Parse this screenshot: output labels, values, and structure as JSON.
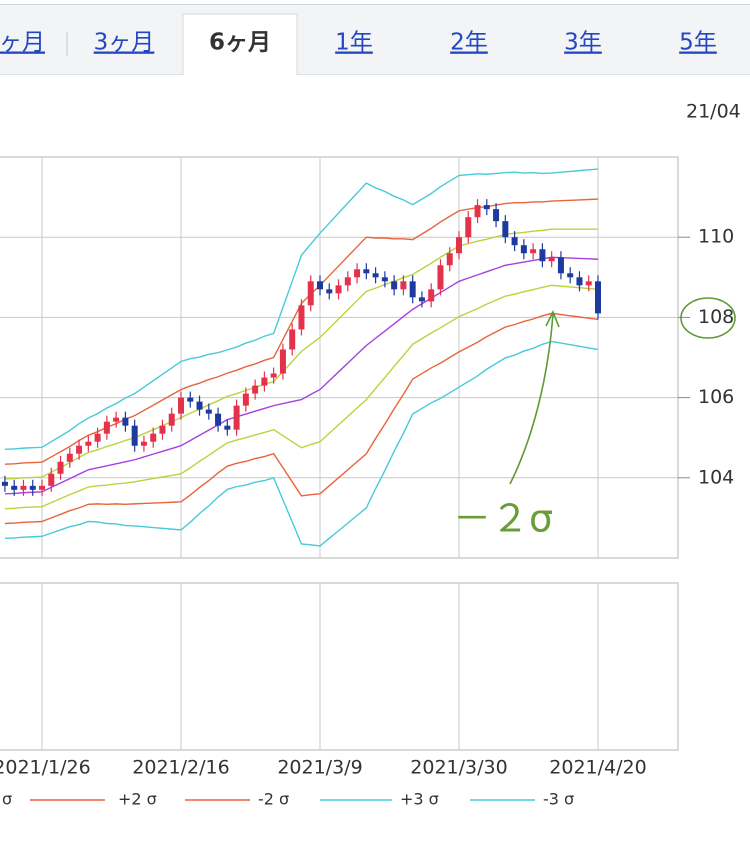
{
  "tabs": [
    "ヶ月",
    "3ヶ月",
    "6ヶ月",
    "1年",
    "2年",
    "3年",
    "5年"
  ],
  "active_tab": 2,
  "date_label": "21/04",
  "chart_data": {
    "type": "candlestick",
    "annotation": "－２σ",
    "categories": [
      null,
      null,
      null,
      null,
      "2021/1/26",
      null,
      null,
      null,
      null,
      null,
      null,
      null,
      null,
      null,
      null,
      null,
      null,
      null,
      null,
      "2021/2/16",
      null,
      null,
      null,
      null,
      null,
      null,
      null,
      null,
      null,
      null,
      null,
      null,
      null,
      null,
      "2021/3/9",
      null,
      null,
      null,
      null,
      null,
      null,
      null,
      null,
      null,
      null,
      null,
      null,
      null,
      null,
      "2021/3/30",
      null,
      null,
      null,
      null,
      null,
      null,
      null,
      null,
      null,
      null,
      null,
      null,
      null,
      null,
      "2021/4/20"
    ],
    "open": [
      103.9,
      103.8,
      103.7,
      103.8,
      103.7,
      103.8,
      104.1,
      104.4,
      104.6,
      104.8,
      104.9,
      105.1,
      105.4,
      105.5,
      105.3,
      104.8,
      104.9,
      105.1,
      105.3,
      105.6,
      106.0,
      105.9,
      105.7,
      105.6,
      105.3,
      105.2,
      105.8,
      106.1,
      106.3,
      106.5,
      106.6,
      107.2,
      107.7,
      108.3,
      108.9,
      108.7,
      108.6,
      108.8,
      109.0,
      109.2,
      109.1,
      109.0,
      108.9,
      108.7,
      108.9,
      108.5,
      108.4,
      108.7,
      109.3,
      109.6,
      110.0,
      110.5,
      110.8,
      110.7,
      110.4,
      110.0,
      109.8,
      109.6,
      109.7,
      109.4,
      109.5,
      109.1,
      109.0,
      108.8,
      108.9
    ],
    "high": [
      104.05,
      103.95,
      103.95,
      103.95,
      103.95,
      104.25,
      104.55,
      104.75,
      104.95,
      105.05,
      105.25,
      105.55,
      105.65,
      105.65,
      105.45,
      105.05,
      105.25,
      105.45,
      105.75,
      106.15,
      106.15,
      106.05,
      105.85,
      105.75,
      105.45,
      105.95,
      106.25,
      106.45,
      106.65,
      106.75,
      107.35,
      107.85,
      108.45,
      109.05,
      109.05,
      108.85,
      108.95,
      109.15,
      109.35,
      109.35,
      109.25,
      109.15,
      109.05,
      109.05,
      109.05,
      108.65,
      108.85,
      109.45,
      109.75,
      110.15,
      110.65,
      110.95,
      110.95,
      110.85,
      110.55,
      110.15,
      109.95,
      109.85,
      109.85,
      109.65,
      109.65,
      109.25,
      109.15,
      109.05,
      109.05
    ],
    "low": [
      103.65,
      103.55,
      103.55,
      103.55,
      103.55,
      103.65,
      103.95,
      104.25,
      104.45,
      104.65,
      104.75,
      104.95,
      105.25,
      105.15,
      104.65,
      104.65,
      104.75,
      104.95,
      105.15,
      105.45,
      105.75,
      105.55,
      105.45,
      105.15,
      105.05,
      105.05,
      105.65,
      105.95,
      106.15,
      106.35,
      106.45,
      107.05,
      107.55,
      108.15,
      108.55,
      108.45,
      108.45,
      108.65,
      108.85,
      108.95,
      108.85,
      108.75,
      108.55,
      108.55,
      108.35,
      108.25,
      108.25,
      108.55,
      109.15,
      109.45,
      109.85,
      110.35,
      110.55,
      110.25,
      109.85,
      109.65,
      109.45,
      109.45,
      109.25,
      109.25,
      108.95,
      108.85,
      108.65,
      108.65,
      107.95
    ],
    "close": [
      103.8,
      103.7,
      103.8,
      103.7,
      103.8,
      104.1,
      104.4,
      104.6,
      104.8,
      104.9,
      105.1,
      105.4,
      105.5,
      105.3,
      104.8,
      104.9,
      105.1,
      105.3,
      105.6,
      106.0,
      105.9,
      105.7,
      105.6,
      105.3,
      105.2,
      105.8,
      106.1,
      106.3,
      106.5,
      106.6,
      107.2,
      107.7,
      108.3,
      108.9,
      108.7,
      108.6,
      108.8,
      109.0,
      109.2,
      109.1,
      109.0,
      108.9,
      108.7,
      108.9,
      108.5,
      108.4,
      108.7,
      109.3,
      109.6,
      110.0,
      110.5,
      110.8,
      110.7,
      110.4,
      110.0,
      109.8,
      109.6,
      109.7,
      109.4,
      109.5,
      109.1,
      109.0,
      108.8,
      108.9,
      108.1
    ],
    "up_color": "#e4324c",
    "down_color": "#1d3a9e",
    "series": [
      {
        "color": "#a640e0",
        "values": [
          103.6,
          103.61,
          103.63,
          103.64,
          103.65,
          103.76,
          103.87,
          103.98,
          104.09,
          104.2,
          104.25,
          104.3,
          104.35,
          104.4,
          104.45,
          104.52,
          104.59,
          104.66,
          104.73,
          104.8,
          104.93,
          105.06,
          105.19,
          105.32,
          105.45,
          105.52,
          105.59,
          105.66,
          105.73,
          105.8,
          105.85,
          105.9,
          105.95,
          106.08,
          106.2,
          106.42,
          106.64,
          106.86,
          107.08,
          107.3,
          107.48,
          107.66,
          107.84,
          108.02,
          108.2,
          108.34,
          108.48,
          108.62,
          108.76,
          108.9,
          108.98,
          109.06,
          109.14,
          109.22,
          109.3,
          109.34,
          109.38,
          109.42,
          109.46,
          109.5,
          109.49,
          109.48,
          109.47,
          109.46,
          109.45
        ]
      },
      {
        "color": "#bcd33c",
        "values": [
          103.97,
          103.98,
          104.0,
          104.01,
          104.02,
          104.14,
          104.26,
          104.38,
          104.51,
          104.63,
          104.7,
          104.78,
          104.85,
          104.93,
          105.0,
          105.1,
          105.2,
          105.3,
          105.4,
          105.5,
          105.61,
          105.71,
          105.82,
          105.92,
          106.03,
          106.1,
          106.18,
          106.25,
          106.33,
          106.4,
          106.65,
          106.9,
          107.15,
          107.33,
          107.5,
          107.73,
          107.96,
          108.19,
          108.42,
          108.65,
          108.73,
          108.82,
          108.9,
          108.99,
          109.07,
          109.21,
          109.35,
          109.5,
          109.64,
          109.78,
          109.84,
          109.9,
          109.95,
          110.01,
          110.07,
          110.1,
          110.12,
          110.15,
          110.17,
          110.2,
          110.2,
          110.2,
          110.2,
          110.2,
          110.2
        ]
      },
      {
        "name": "σ",
        "color": "#bcd33c",
        "values": [
          103.23,
          103.24,
          103.26,
          103.27,
          103.28,
          103.38,
          103.48,
          103.58,
          103.67,
          103.77,
          103.8,
          103.82,
          103.85,
          103.87,
          103.9,
          103.94,
          103.98,
          104.02,
          104.06,
          104.1,
          104.25,
          104.41,
          104.56,
          104.72,
          104.87,
          104.94,
          105.0,
          105.07,
          105.13,
          105.2,
          105.05,
          104.9,
          104.75,
          104.83,
          104.9,
          105.11,
          105.32,
          105.53,
          105.74,
          105.95,
          106.23,
          106.5,
          106.78,
          107.05,
          107.33,
          107.47,
          107.61,
          107.74,
          107.88,
          108.02,
          108.12,
          108.22,
          108.33,
          108.43,
          108.53,
          108.58,
          108.64,
          108.69,
          108.75,
          108.8,
          108.78,
          108.76,
          108.74,
          108.72,
          108.7
        ]
      },
      {
        "name": "+2 σ",
        "color": "#e8643c",
        "values": [
          104.34,
          104.35,
          104.37,
          104.38,
          104.39,
          104.52,
          104.65,
          104.78,
          104.93,
          105.06,
          105.15,
          105.26,
          105.35,
          105.46,
          105.55,
          105.68,
          105.81,
          105.94,
          106.07,
          106.2,
          106.29,
          106.36,
          106.45,
          106.52,
          106.61,
          106.68,
          106.77,
          106.84,
          106.93,
          107.0,
          107.45,
          107.9,
          108.35,
          108.58,
          108.8,
          109.04,
          109.28,
          109.52,
          109.76,
          110.0,
          109.98,
          109.98,
          109.96,
          109.96,
          109.94,
          110.08,
          110.22,
          110.38,
          110.52,
          110.66,
          110.7,
          110.74,
          110.76,
          110.8,
          110.84,
          110.86,
          110.86,
          110.88,
          110.88,
          110.9,
          110.91,
          110.92,
          110.93,
          110.94,
          110.95
        ]
      },
      {
        "name": "-2 σ",
        "color": "#e8643c",
        "values": [
          102.86,
          102.87,
          102.89,
          102.9,
          102.91,
          103.0,
          103.09,
          103.18,
          103.25,
          103.34,
          103.35,
          103.34,
          103.35,
          103.34,
          103.35,
          103.36,
          103.37,
          103.38,
          103.39,
          103.4,
          103.57,
          103.76,
          103.93,
          104.12,
          104.29,
          104.36,
          104.41,
          104.48,
          104.53,
          104.6,
          104.25,
          103.9,
          103.55,
          103.58,
          103.6,
          103.8,
          104.0,
          104.2,
          104.4,
          104.6,
          104.98,
          105.34,
          105.72,
          106.08,
          106.46,
          106.6,
          106.74,
          106.86,
          107.0,
          107.14,
          107.26,
          107.38,
          107.52,
          107.64,
          107.76,
          107.82,
          107.9,
          107.96,
          108.04,
          108.1,
          108.07,
          108.04,
          108.01,
          107.98,
          107.95
        ]
      },
      {
        "name": "+3 σ",
        "color": "#48cad8",
        "values": [
          104.71,
          104.72,
          104.74,
          104.75,
          104.76,
          104.9,
          105.04,
          105.18,
          105.35,
          105.49,
          105.6,
          105.74,
          105.85,
          105.99,
          106.1,
          106.26,
          106.42,
          106.58,
          106.74,
          106.9,
          106.97,
          107.01,
          107.08,
          107.12,
          107.19,
          107.26,
          107.36,
          107.43,
          107.53,
          107.6,
          108.25,
          108.9,
          109.55,
          109.83,
          110.1,
          110.35,
          110.6,
          110.85,
          111.1,
          111.35,
          111.23,
          111.14,
          111.02,
          110.93,
          110.81,
          110.95,
          111.09,
          111.26,
          111.4,
          111.54,
          111.56,
          111.58,
          111.57,
          111.59,
          111.61,
          111.62,
          111.6,
          111.61,
          111.59,
          111.6,
          111.62,
          111.64,
          111.66,
          111.68,
          111.7
        ]
      },
      {
        "name": "-3 σ",
        "color": "#48cad8",
        "values": [
          102.49,
          102.5,
          102.52,
          102.53,
          102.54,
          102.62,
          102.7,
          102.78,
          102.83,
          102.91,
          102.9,
          102.86,
          102.85,
          102.81,
          102.8,
          102.78,
          102.76,
          102.74,
          102.72,
          102.7,
          102.89,
          103.11,
          103.3,
          103.52,
          103.71,
          103.78,
          103.82,
          103.89,
          103.93,
          104.0,
          103.45,
          102.9,
          102.35,
          102.33,
          102.3,
          102.49,
          102.68,
          102.87,
          103.06,
          103.25,
          103.73,
          104.18,
          104.66,
          105.11,
          105.59,
          105.73,
          105.87,
          105.98,
          106.12,
          106.26,
          106.4,
          106.54,
          106.71,
          106.85,
          106.99,
          107.06,
          107.16,
          107.23,
          107.33,
          107.4,
          107.36,
          107.32,
          107.28,
          107.24,
          107.2
        ]
      }
    ],
    "ylim": [
      102,
      112
    ],
    "yticks": [
      104,
      106,
      108,
      110
    ],
    "grid": true
  }
}
